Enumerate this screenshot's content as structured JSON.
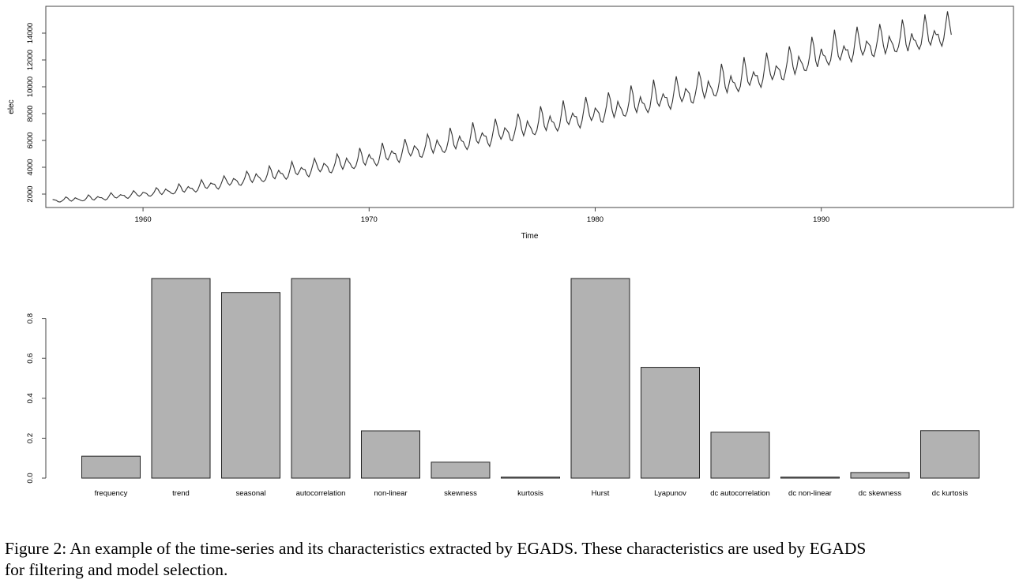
{
  "caption": {
    "line1": "Figure 2: An example of the time-series and its characteristics extracted by EGADS. These characteristics are used by EGADS",
    "line2": "for filtering and model selection."
  },
  "chart_data": [
    {
      "type": "line",
      "title": "",
      "xlabel": "Time",
      "ylabel": "elec",
      "xlim": [
        1955.7,
        1998.5
      ],
      "ylim": [
        1000,
        16000
      ],
      "x_ticks": [
        1960,
        1970,
        1980,
        1990
      ],
      "y_ticks": [
        2000,
        4000,
        6000,
        8000,
        10000,
        12000,
        14000
      ],
      "grid": false,
      "legend": "none",
      "line_color": "#333333",
      "series": [
        {
          "start": 1956.0,
          "frequency": 12,
          "trend_knots": [
            [
              1956,
              1500
            ],
            [
              1958,
              1680
            ],
            [
              1960,
              1980
            ],
            [
              1962,
              2350
            ],
            [
              1964,
              2900
            ],
            [
              1966,
              3450
            ],
            [
              1968,
              3950
            ],
            [
              1970,
              4550
            ],
            [
              1972,
              5200
            ],
            [
              1974,
              5850
            ],
            [
              1976,
              6500
            ],
            [
              1978,
              7300
            ],
            [
              1980,
              7950
            ],
            [
              1982,
              8700
            ],
            [
              1984,
              9400
            ],
            [
              1986,
              10250
            ],
            [
              1988,
              11100
            ],
            [
              1990,
              12250
            ],
            [
              1992,
              12950
            ],
            [
              1994,
              13400
            ],
            [
              1995.75,
              14000
            ]
          ],
          "peak_amplitude_knots": [
            [
              1956,
              250
            ],
            [
              1960,
              400
            ],
            [
              1965,
              750
            ],
            [
              1970,
              1050
            ],
            [
              1975,
              1300
            ],
            [
              1980,
              1500
            ],
            [
              1985,
              1600
            ],
            [
              1990,
              1700
            ],
            [
              1995.75,
              1700
            ]
          ]
        }
      ]
    },
    {
      "type": "bar",
      "title": "",
      "xlabel": "",
      "ylabel": "",
      "ylim": [
        0,
        1.0
      ],
      "y_ticks": [
        "0.0",
        "0.2",
        "0.4",
        "0.6",
        "0.8"
      ],
      "grid": false,
      "legend": "none",
      "bar_color": "#b2b2b2",
      "categories": [
        "frequency",
        "trend",
        "seasonal",
        "autocorrelation",
        "non-linear",
        "skewness",
        "kurtosis",
        "Hurst",
        "Lyapunov",
        "dc autocorrelation",
        "dc non-linear",
        "dc skewness",
        "dc kurtosis"
      ],
      "values": [
        0.11,
        1.0,
        0.93,
        1.0,
        0.237,
        0.08,
        0.005,
        1.0,
        0.555,
        0.23,
        0.005,
        0.028,
        0.238
      ]
    }
  ]
}
